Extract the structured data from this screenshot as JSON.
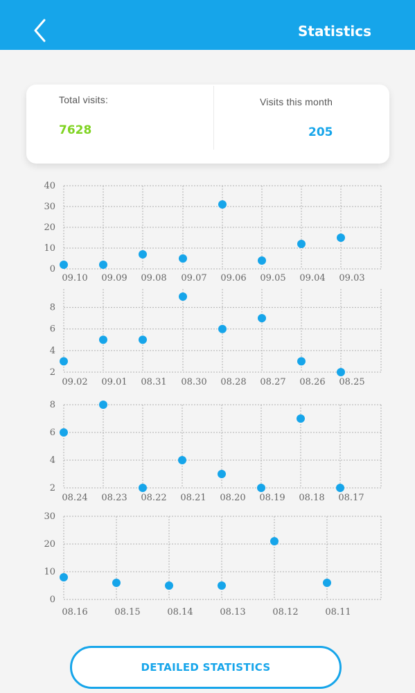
{
  "header": {
    "title": "Statistics",
    "back_icon": "chevron-left-icon"
  },
  "stats": {
    "total_label": "Total visits:",
    "total_value": "7628",
    "month_label": "Visits this month",
    "month_value": "205"
  },
  "colors": {
    "accent": "#16a5ea",
    "total_green": "#7fd321",
    "background": "#f4f4f4"
  },
  "detail_button": {
    "label": "DETAILED STATISTICS"
  },
  "chart_data": [
    {
      "type": "scatter",
      "x": [
        "09.10",
        "09.09",
        "09.08",
        "09.07",
        "09.06",
        "09.05",
        "09.04",
        "09.03"
      ],
      "values": [
        2,
        2,
        7,
        5,
        31,
        4,
        12,
        15
      ],
      "yticks": [
        0,
        10,
        20,
        30,
        40
      ],
      "ylim": [
        0,
        40
      ],
      "grid": true
    },
    {
      "type": "scatter",
      "x": [
        "09.02",
        "09.01",
        "08.31",
        "08.30",
        "08.28",
        "08.27",
        "08.26",
        "08.25"
      ],
      "values": [
        3,
        5,
        5,
        9,
        6,
        7,
        3,
        2
      ],
      "yticks": [
        2,
        4,
        6,
        8
      ],
      "ylim": [
        2,
        9
      ],
      "grid": true
    },
    {
      "type": "scatter",
      "x": [
        "08.24",
        "08.23",
        "08.22",
        "08.21",
        "08.20",
        "08.19",
        "08.18",
        "08.17"
      ],
      "values": [
        6,
        8,
        2,
        4,
        3,
        2,
        7,
        2
      ],
      "yticks": [
        2,
        4,
        6,
        8
      ],
      "ylim": [
        2,
        8
      ],
      "grid": true
    },
    {
      "type": "scatter",
      "x": [
        "08.16",
        "08.15",
        "08.14",
        "08.13",
        "08.12",
        "08.11"
      ],
      "values": [
        8,
        6,
        5,
        5,
        21,
        6
      ],
      "yticks": [
        0,
        10,
        20,
        30
      ],
      "ylim": [
        0,
        30
      ],
      "grid": true
    }
  ]
}
